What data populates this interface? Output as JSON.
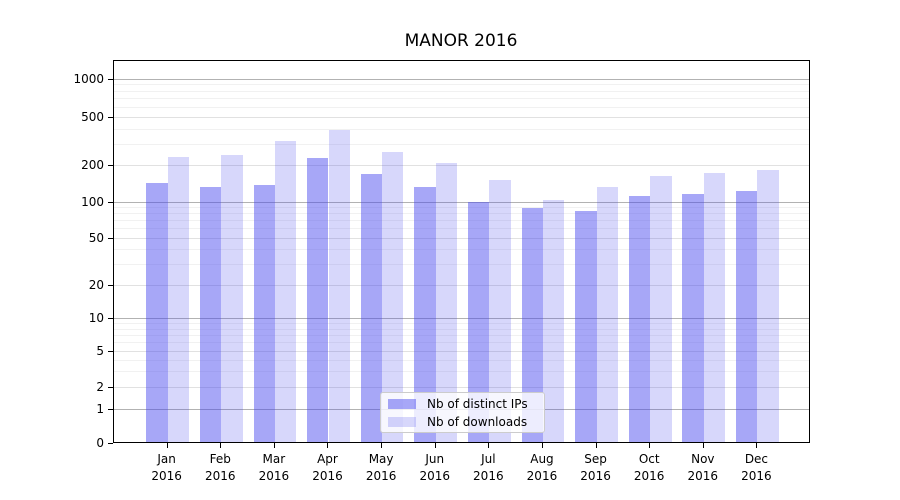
{
  "title": "MANOR 2016",
  "legend": {
    "items": [
      {
        "label": "Nb of distinct IPs",
        "key": "distinct-ips"
      },
      {
        "label": "Nb of downloads",
        "key": "downloads"
      }
    ]
  },
  "colors": {
    "bar_distinct_ips": "rgba(68,68,238,0.47)",
    "bar_downloads": "rgba(68,68,238,0.21)",
    "grid_major": "#b2b2b2",
    "grid_sub": "#e1e1e1",
    "grid_minor": "#f1f1f1",
    "axis": "#000000",
    "legend_border": "#cccccc"
  },
  "y_axis": {
    "tick_labels": [
      "1000",
      "500",
      "200",
      "100",
      "50",
      "20",
      "10",
      "5",
      "2",
      "1",
      "0"
    ],
    "tick_values": [
      1000,
      500,
      200,
      100,
      50,
      20,
      10,
      5,
      2,
      1,
      0
    ]
  },
  "x_axis": {
    "year": "2016",
    "months": [
      "Jan",
      "Feb",
      "Mar",
      "Apr",
      "May",
      "Jun",
      "Jul",
      "Aug",
      "Sep",
      "Oct",
      "Nov",
      "Dec"
    ]
  },
  "chart_data": {
    "type": "bar",
    "title": "MANOR 2016",
    "categories": [
      "Jan 2016",
      "Feb 2016",
      "Mar 2016",
      "Apr 2016",
      "May 2016",
      "Jun 2016",
      "Jul 2016",
      "Aug 2016",
      "Sep 2016",
      "Oct 2016",
      "Nov 2016",
      "Dec 2016"
    ],
    "series": [
      {
        "name": "Nb of distinct IPs",
        "values": [
          140,
          129,
          135,
          226,
          167,
          130,
          98,
          87,
          82,
          110,
          113,
          120
        ]
      },
      {
        "name": "Nb of downloads",
        "values": [
          227,
          237,
          310,
          383,
          250,
          206,
          148,
          102,
          130,
          160,
          168,
          178
        ]
      }
    ],
    "yscale": "log",
    "yticks": [
      0,
      1,
      2,
      5,
      10,
      20,
      50,
      100,
      200,
      500,
      1000
    ],
    "ylim": [
      0,
      1400
    ],
    "grid": "horizontal",
    "legend_position": "lower center"
  }
}
